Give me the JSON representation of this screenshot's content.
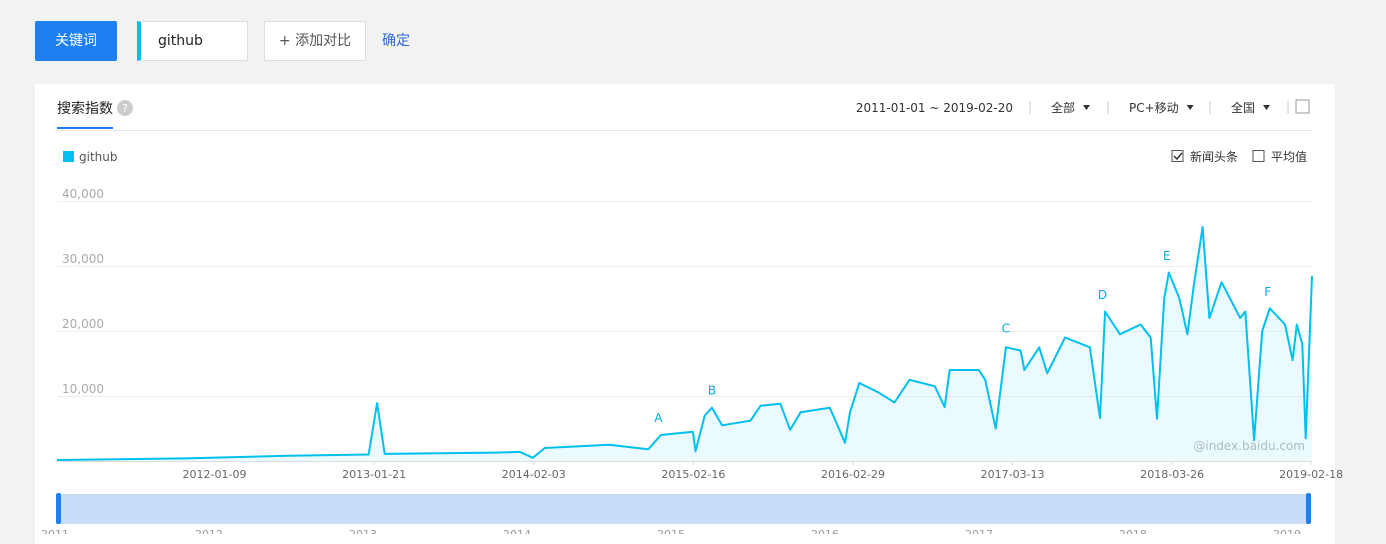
{
  "toolbar": {
    "keyword_button": "关键词",
    "keyword": "github",
    "add_compare": "+ 添加对比",
    "confirm": "确定"
  },
  "card": {
    "tab": "搜索指数",
    "help": "?",
    "date_range": "2011-01-01 ~ 2019-02-20",
    "filters": [
      "全部",
      "PC+移动",
      "全国"
    ],
    "checkboxes": [
      {
        "label": "新闻头条",
        "checked": true
      },
      {
        "label": "平均值",
        "checked": false
      }
    ],
    "watermark": "@index.baidu.com",
    "navigator": {
      "labels": [
        "2011",
        "2012",
        "2013",
        "2014",
        "2015",
        "2016",
        "2017",
        "2018",
        "2019"
      ]
    }
  },
  "chart_data": {
    "type": "line",
    "series": [
      {
        "name": "github",
        "color": "#00c0ef",
        "x": [
          "2011-01-01",
          "2011-11-01",
          "2012-07-01",
          "2013-01-08",
          "2013-01-28",
          "2013-02-15",
          "2013-11-01",
          "2014-01-01",
          "2014-02-01",
          "2014-03-01",
          "2014-08-01",
          "2014-11-01",
          "2014-12-01",
          "2015-02-15",
          "2015-02-21",
          "2015-03-15",
          "2015-04-01",
          "2015-04-25",
          "2015-07-01",
          "2015-07-25",
          "2015-09-10",
          "2015-10-03",
          "2015-10-28",
          "2016-01-05",
          "2016-02-10",
          "2016-02-22",
          "2016-03-15",
          "2016-05-01",
          "2016-06-06",
          "2016-07-12",
          "2016-09-10",
          "2016-10-03",
          "2016-10-15",
          "2016-12-23",
          "2017-01-07",
          "2017-02-01",
          "2017-02-25",
          "2017-04-01",
          "2017-04-10",
          "2017-05-15",
          "2017-06-03",
          "2017-07-15",
          "2017-09-12",
          "2017-10-06",
          "2017-10-18",
          "2017-11-22",
          "2018-01-10",
          "2018-02-03",
          "2018-02-18",
          "2018-03-07",
          "2018-03-18",
          "2018-04-12",
          "2018-05-01",
          "2018-05-16",
          "2018-06-06",
          "2018-06-22",
          "2018-07-21",
          "2018-09-03",
          "2018-09-15",
          "2018-10-06",
          "2018-10-25",
          "2018-11-12",
          "2018-12-18",
          "2019-01-05",
          "2019-01-15",
          "2019-01-28",
          "2019-02-05",
          "2019-02-20"
        ],
        "values": [
          150,
          400,
          800,
          1000,
          8900,
          1100,
          1300,
          1400,
          500,
          2000,
          2500,
          1800,
          4000,
          4500,
          1500,
          7000,
          8200,
          5500,
          6200,
          8500,
          8800,
          4800,
          7500,
          8200,
          2800,
          7500,
          12000,
          10500,
          9000,
          12500,
          11500,
          8300,
          14000,
          14000,
          12500,
          5000,
          17500,
          17000,
          14000,
          17500,
          13500,
          19000,
          17500,
          6600,
          23000,
          19500,
          21000,
          19000,
          6500,
          25000,
          29000,
          25000,
          19500,
          27000,
          36000,
          22000,
          27500,
          22000,
          23000,
          3200,
          20000,
          23500,
          21000,
          15500,
          21000,
          18000,
          3500,
          28500
        ]
      }
    ],
    "xlim": [
      "2011-01-01",
      "2019-02-20"
    ],
    "xticks": [
      "2012-01-09",
      "2013-01-21",
      "2014-02-03",
      "2015-02-16",
      "2016-02-29",
      "2017-03-13",
      "2018-03-26",
      "2019-02-18"
    ],
    "ylim": [
      0,
      40000
    ],
    "yticks": [
      {
        "value": 10000,
        "label": "10,000"
      },
      {
        "value": 20000,
        "label": "20,000"
      },
      {
        "value": 30000,
        "label": "30,000"
      },
      {
        "value": 40000,
        "label": "40,000"
      }
    ],
    "grid": true,
    "annotations": [
      {
        "x": "2014-11-25",
        "y": 6000,
        "text": "A"
      },
      {
        "x": "2015-04-01",
        "y": 10200,
        "text": "B"
      },
      {
        "x": "2017-02-25",
        "y": 19800,
        "text": "C"
      },
      {
        "x": "2017-10-12",
        "y": 24900,
        "text": "D"
      },
      {
        "x": "2018-03-13",
        "y": 30900,
        "text": "E"
      },
      {
        "x": "2018-11-07",
        "y": 25400,
        "text": "F"
      }
    ]
  }
}
